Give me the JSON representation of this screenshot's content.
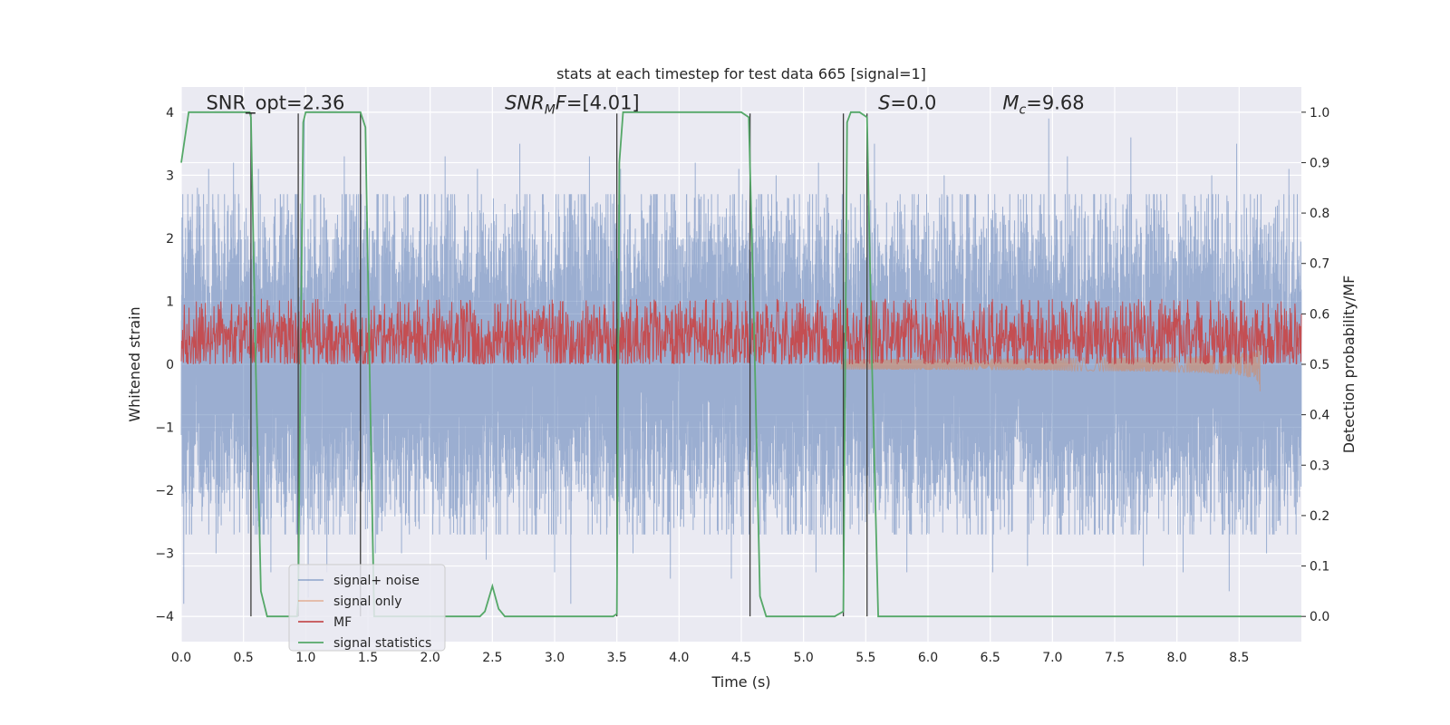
{
  "chart_data": {
    "type": "line",
    "title": "stats at each timestep for test data 665 [signal=1]",
    "xlabel": "Time (s)",
    "ylabel_left": "Whitened strain",
    "ylabel_right": "Detection probability/MF",
    "xlim": [
      0.0,
      9.0
    ],
    "ylim_left": [
      -4.4,
      4.4
    ],
    "ylim_right": [
      -0.05,
      1.05
    ],
    "xticks": [
      0.0,
      0.5,
      1.0,
      1.5,
      2.0,
      2.5,
      3.0,
      3.5,
      4.0,
      4.5,
      5.0,
      5.5,
      6.0,
      6.5,
      7.0,
      7.5,
      8.0,
      8.5
    ],
    "xtick_labels": [
      "0.0",
      "0.5",
      "1.0",
      "1.5",
      "2.0",
      "2.5",
      "3.0",
      "3.5",
      "4.0",
      "4.5",
      "5.0",
      "5.5",
      "6.0",
      "6.5",
      "7.0",
      "7.5",
      "8.0",
      "8.5"
    ],
    "yticks_left": [
      -4,
      -3,
      -2,
      -1,
      0,
      1,
      2,
      3,
      4
    ],
    "ytick_labels_left": [
      "−4",
      "−3",
      "−2",
      "−1",
      "0",
      "1",
      "2",
      "3",
      "4"
    ],
    "yticks_right": [
      0.0,
      0.1,
      0.2,
      0.3,
      0.4,
      0.5,
      0.6,
      0.7,
      0.8,
      0.9,
      1.0
    ],
    "ytick_labels_right": [
      "0.0",
      "0.1",
      "0.2",
      "0.3",
      "0.4",
      "0.5",
      "0.6",
      "0.7",
      "0.8",
      "0.9",
      "1.0"
    ],
    "grid": true,
    "legend_position": "lower-left",
    "annotations": [
      {
        "x": 0.2,
        "y": 4.05,
        "text": "SNR_opt=2.36",
        "italic": false
      },
      {
        "x": 2.6,
        "y": 4.05,
        "text": "SNR_M F=[4.01]",
        "italic": true,
        "main": "SNR",
        "sub": "M",
        "suffix": "F",
        "value": "=[4.01]"
      },
      {
        "x": 5.6,
        "y": 4.05,
        "text": "S=0.0",
        "italic": true,
        "main": "S",
        "value": "=0.0"
      },
      {
        "x": 6.6,
        "y": 4.05,
        "text": "M_c=9.68",
        "italic": true,
        "main": "M",
        "sub": "c",
        "value": "=9.68"
      }
    ],
    "vertical_markers": [
      0.56,
      0.94,
      1.44,
      3.5,
      4.57,
      5.32,
      5.51
    ],
    "series": [
      {
        "name": "signal+ noise",
        "color": "#4c72b0",
        "opacity": 0.5,
        "kind": "noise",
        "sample_rate": 2048,
        "amplitude": 1.15,
        "spikes": [
          {
            "x": 0.02,
            "y": -3.8
          },
          {
            "x": 0.13,
            "y": 2.8
          },
          {
            "x": 0.22,
            "y": 3.1
          },
          {
            "x": 0.28,
            "y": -3.0
          },
          {
            "x": 0.42,
            "y": 3.2
          },
          {
            "x": 0.62,
            "y": 3.1
          },
          {
            "x": 0.72,
            "y": -3.3
          },
          {
            "x": 0.99,
            "y": 3.9
          },
          {
            "x": 1.02,
            "y": -3.7
          },
          {
            "x": 1.17,
            "y": -3.3
          },
          {
            "x": 1.31,
            "y": 3.3
          },
          {
            "x": 1.56,
            "y": -3.0
          },
          {
            "x": 1.77,
            "y": -3.0
          },
          {
            "x": 2.12,
            "y": 3.3
          },
          {
            "x": 2.38,
            "y": 3.1
          },
          {
            "x": 2.45,
            "y": -3.1
          },
          {
            "x": 2.72,
            "y": 3.5
          },
          {
            "x": 3.0,
            "y": -3.3
          },
          {
            "x": 3.13,
            "y": -3.8
          },
          {
            "x": 3.28,
            "y": 3.3
          },
          {
            "x": 3.53,
            "y": 3.1
          },
          {
            "x": 3.63,
            "y": -3.0
          },
          {
            "x": 3.93,
            "y": -3.4
          },
          {
            "x": 4.13,
            "y": 3.2
          },
          {
            "x": 4.42,
            "y": -3.4
          },
          {
            "x": 4.48,
            "y": 3.1
          },
          {
            "x": 4.78,
            "y": 3.0
          },
          {
            "x": 5.1,
            "y": -3.3
          },
          {
            "x": 5.12,
            "y": 3.2
          },
          {
            "x": 5.57,
            "y": 3.5
          },
          {
            "x": 5.83,
            "y": -3.3
          },
          {
            "x": 6.13,
            "y": 3.0
          },
          {
            "x": 6.52,
            "y": -3.3
          },
          {
            "x": 6.8,
            "y": -3.2
          },
          {
            "x": 6.97,
            "y": 3.9
          },
          {
            "x": 7.12,
            "y": 3.3
          },
          {
            "x": 7.63,
            "y": 3.6
          },
          {
            "x": 7.73,
            "y": -3.2
          },
          {
            "x": 8.05,
            "y": -3.3
          },
          {
            "x": 8.28,
            "y": 3.0
          },
          {
            "x": 8.42,
            "y": -3.6
          },
          {
            "x": 8.48,
            "y": 3.5
          },
          {
            "x": 8.72,
            "y": -3.0
          },
          {
            "x": 8.9,
            "y": 3.1
          }
        ]
      },
      {
        "name": "signal only",
        "color": "#dd8452",
        "opacity": 0.5,
        "kind": "chirp",
        "x_start": 5.3,
        "x_end": 8.67,
        "peak_amplitude": 0.45
      },
      {
        "name": "MF",
        "color": "#c44e52",
        "opacity": 1.0,
        "kind": "mf",
        "baseline": 0.55,
        "spread": 0.06,
        "max": 0.63,
        "min": 0.5
      },
      {
        "name": "signal statistics",
        "color": "#55a868",
        "opacity": 1.0,
        "kind": "line",
        "axis": "right",
        "x": [
          0.0,
          0.06,
          0.55,
          0.56,
          0.6,
          0.64,
          0.69,
          0.93,
          0.94,
          0.96,
          0.98,
          1.0,
          1.44,
          1.48,
          1.52,
          1.55,
          2.4,
          2.44,
          2.5,
          2.55,
          2.6,
          3.47,
          3.5,
          3.52,
          3.55,
          4.5,
          4.56,
          4.6,
          4.65,
          4.7,
          5.25,
          5.32,
          5.35,
          5.38,
          5.45,
          5.51,
          5.55,
          5.6,
          9.0
        ],
        "y": [
          0.9,
          1.0,
          1.0,
          0.99,
          0.48,
          0.05,
          0.0,
          0.0,
          0.03,
          0.55,
          0.98,
          1.0,
          1.0,
          0.97,
          0.4,
          0.0,
          0.0,
          0.01,
          0.06,
          0.015,
          0.0,
          0.0,
          0.005,
          0.9,
          1.0,
          1.0,
          0.99,
          0.6,
          0.04,
          0.0,
          0.0,
          0.01,
          0.98,
          1.0,
          1.0,
          0.99,
          0.5,
          0.0,
          0.0
        ]
      }
    ],
    "legend": {
      "entries": [
        {
          "label": "signal+ noise",
          "color": "#4c72b0",
          "opacity": 0.5
        },
        {
          "label": "signal only",
          "color": "#dd8452",
          "opacity": 0.5
        },
        {
          "label": "MF",
          "color": "#c44e52",
          "opacity": 1.0
        },
        {
          "label": "signal statistics",
          "color": "#55a868",
          "opacity": 1.0
        }
      ]
    },
    "colors": {
      "plot_bg": "#eaeaf2",
      "grid": "#ffffff",
      "marker": "#3d3d3d"
    }
  }
}
